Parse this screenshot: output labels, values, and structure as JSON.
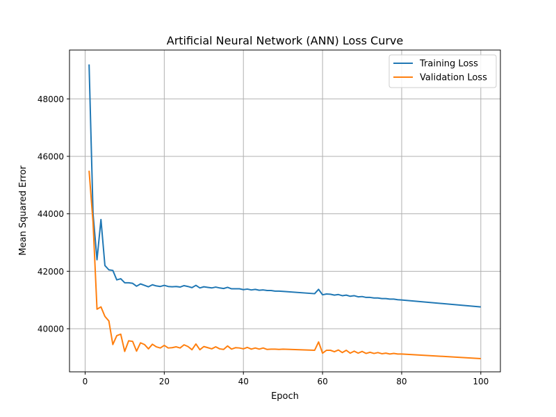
{
  "chart_data": {
    "type": "line",
    "title": "Artificial Neural Network (ANN) Loss Curve",
    "xlabel": "Epoch",
    "ylabel": "Mean Squared Error",
    "xlim": [
      -3.95,
      104.95
    ],
    "ylim": [
      38500,
      49700
    ],
    "x_ticks": [
      0,
      20,
      40,
      60,
      80,
      100
    ],
    "y_ticks": [
      40000,
      42000,
      44000,
      46000,
      48000
    ],
    "grid": true,
    "legend_position": "upper right",
    "colors": {
      "training": "#1f77b4",
      "validation": "#ff7f0e"
    },
    "series": [
      {
        "name": "Training Loss",
        "x": [
          1,
          2,
          3,
          4,
          5,
          6,
          7,
          8,
          9,
          10,
          11,
          12,
          13,
          14,
          15,
          16,
          17,
          18,
          19,
          20,
          21,
          22,
          23,
          24,
          25,
          26,
          27,
          28,
          29,
          30,
          31,
          32,
          33,
          34,
          35,
          36,
          37,
          38,
          39,
          40,
          41,
          42,
          43,
          44,
          45,
          46,
          47,
          48,
          49,
          50,
          58,
          59,
          60,
          61,
          62,
          63,
          64,
          65,
          66,
          67,
          68,
          69,
          70,
          71,
          72,
          73,
          74,
          75,
          76,
          77,
          78,
          79,
          80,
          100
        ],
        "values": [
          49200,
          44000,
          42400,
          43800,
          42200,
          42050,
          42030,
          41700,
          41740,
          41600,
          41600,
          41580,
          41480,
          41560,
          41510,
          41460,
          41530,
          41490,
          41470,
          41510,
          41470,
          41460,
          41470,
          41450,
          41500,
          41470,
          41430,
          41510,
          41420,
          41460,
          41440,
          41420,
          41450,
          41420,
          41400,
          41440,
          41390,
          41390,
          41390,
          41360,
          41380,
          41350,
          41370,
          41340,
          41350,
          41330,
          41330,
          41310,
          41310,
          41300,
          41220,
          41370,
          41180,
          41210,
          41200,
          41170,
          41190,
          41150,
          41170,
          41130,
          41150,
          41110,
          41120,
          41090,
          41090,
          41070,
          41070,
          41050,
          41050,
          41030,
          41030,
          41010,
          41000,
          40760
        ]
      },
      {
        "name": "Validation Loss",
        "x": [
          1,
          2,
          3,
          4,
          5,
          6,
          7,
          8,
          9,
          10,
          11,
          12,
          13,
          14,
          15,
          16,
          17,
          18,
          19,
          20,
          21,
          22,
          23,
          24,
          25,
          26,
          27,
          28,
          29,
          30,
          31,
          32,
          33,
          34,
          35,
          36,
          37,
          38,
          39,
          40,
          41,
          42,
          43,
          44,
          45,
          46,
          47,
          48,
          49,
          50,
          58,
          59,
          60,
          61,
          62,
          63,
          64,
          65,
          66,
          67,
          68,
          69,
          70,
          71,
          72,
          73,
          74,
          75,
          76,
          77,
          78,
          79,
          80,
          100
        ],
        "values": [
          45500,
          43700,
          40680,
          40760,
          40430,
          40270,
          39450,
          39760,
          39810,
          39210,
          39580,
          39560,
          39220,
          39510,
          39450,
          39300,
          39460,
          39370,
          39330,
          39420,
          39330,
          39340,
          39370,
          39330,
          39440,
          39380,
          39270,
          39470,
          39270,
          39380,
          39340,
          39300,
          39370,
          39300,
          39280,
          39400,
          39290,
          39340,
          39330,
          39300,
          39350,
          39290,
          39330,
          39290,
          39330,
          39280,
          39290,
          39290,
          39280,
          39290,
          39250,
          39540,
          39150,
          39250,
          39250,
          39200,
          39260,
          39170,
          39250,
          39150,
          39220,
          39150,
          39210,
          39140,
          39180,
          39140,
          39170,
          39130,
          39150,
          39120,
          39140,
          39120,
          39120,
          38960
        ]
      }
    ]
  }
}
